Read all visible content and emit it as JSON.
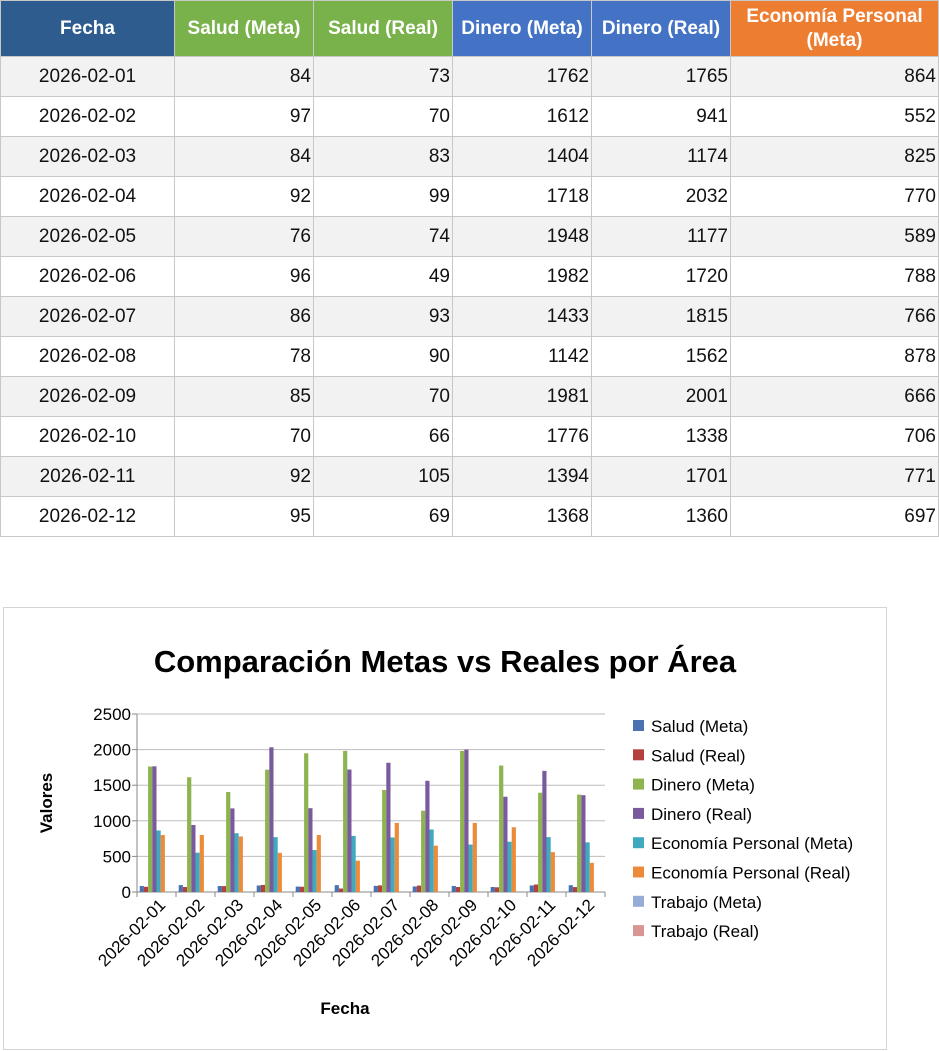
{
  "table": {
    "headers": [
      {
        "label": "Fecha",
        "color": "#2e5c8f"
      },
      {
        "label": "Salud (Meta)",
        "color": "#79b24a"
      },
      {
        "label": "Salud (Real)",
        "color": "#79b24a"
      },
      {
        "label": "Dinero (Meta)",
        "color": "#4472c4"
      },
      {
        "label": "Dinero (Real)",
        "color": "#4472c4"
      },
      {
        "label": "Economía Personal (Meta)",
        "color": "#ed7d31"
      }
    ],
    "rows": [
      [
        "2026-02-01",
        "84",
        "73",
        "1762",
        "1765",
        "864"
      ],
      [
        "2026-02-02",
        "97",
        "70",
        "1612",
        "941",
        "552"
      ],
      [
        "2026-02-03",
        "84",
        "83",
        "1404",
        "1174",
        "825"
      ],
      [
        "2026-02-04",
        "92",
        "99",
        "1718",
        "2032",
        "770"
      ],
      [
        "2026-02-05",
        "76",
        "74",
        "1948",
        "1177",
        "589"
      ],
      [
        "2026-02-06",
        "96",
        "49",
        "1982",
        "1720",
        "788"
      ],
      [
        "2026-02-07",
        "86",
        "93",
        "1433",
        "1815",
        "766"
      ],
      [
        "2026-02-08",
        "78",
        "90",
        "1142",
        "1562",
        "878"
      ],
      [
        "2026-02-09",
        "85",
        "70",
        "1981",
        "2001",
        "666"
      ],
      [
        "2026-02-10",
        "70",
        "66",
        "1776",
        "1338",
        "706"
      ],
      [
        "2026-02-11",
        "92",
        "105",
        "1394",
        "1701",
        "771"
      ],
      [
        "2026-02-12",
        "95",
        "69",
        "1368",
        "1360",
        "697"
      ]
    ]
  },
  "chart_data": {
    "type": "bar",
    "title": "Comparación Metas vs Reales por Área",
    "xlabel": "Fecha",
    "ylabel": "Valores",
    "ylim": [
      0,
      2500
    ],
    "yticks": [
      "0",
      "500",
      "1000",
      "1500",
      "2000",
      "2500"
    ],
    "grid": true,
    "legend_position": "right",
    "categories": [
      "2026-02-01",
      "2026-02-02",
      "2026-02-03",
      "2026-02-04",
      "2026-02-05",
      "2026-02-06",
      "2026-02-07",
      "2026-02-08",
      "2026-02-09",
      "2026-02-10",
      "2026-02-11",
      "2026-02-12"
    ],
    "series": [
      {
        "name": "Salud (Meta)",
        "color": "#4a72b0",
        "values": [
          84,
          97,
          84,
          92,
          76,
          96,
          86,
          78,
          85,
          70,
          92,
          95
        ]
      },
      {
        "name": "Salud (Real)",
        "color": "#b5413e",
        "values": [
          73,
          70,
          83,
          99,
          74,
          49,
          93,
          90,
          70,
          66,
          105,
          69
        ]
      },
      {
        "name": "Dinero (Meta)",
        "color": "#8eb44f",
        "values": [
          1762,
          1612,
          1404,
          1718,
          1948,
          1982,
          1433,
          1142,
          1981,
          1776,
          1394,
          1368
        ]
      },
      {
        "name": "Dinero (Real)",
        "color": "#7a5a9e",
        "values": [
          1765,
          941,
          1174,
          2032,
          1177,
          1720,
          1815,
          1562,
          2001,
          1338,
          1701,
          1360
        ]
      },
      {
        "name": "Economía Personal (Meta)",
        "color": "#3fa9bf",
        "values": [
          864,
          552,
          825,
          770,
          589,
          788,
          766,
          878,
          666,
          706,
          771,
          697
        ]
      },
      {
        "name": "Economía Personal (Real)",
        "color": "#ec8c3b",
        "values": [
          800,
          800,
          780,
          550,
          800,
          440,
          970,
          650,
          970,
          910,
          560,
          410
        ]
      },
      {
        "name": "Trabajo (Meta)",
        "color": "#95acd8",
        "values": [
          0,
          0,
          0,
          0,
          0,
          0,
          0,
          0,
          0,
          0,
          0,
          0
        ]
      },
      {
        "name": "Trabajo (Real)",
        "color": "#d89594",
        "values": [
          0,
          0,
          0,
          0,
          0,
          0,
          0,
          0,
          0,
          0,
          0,
          0
        ]
      }
    ]
  }
}
